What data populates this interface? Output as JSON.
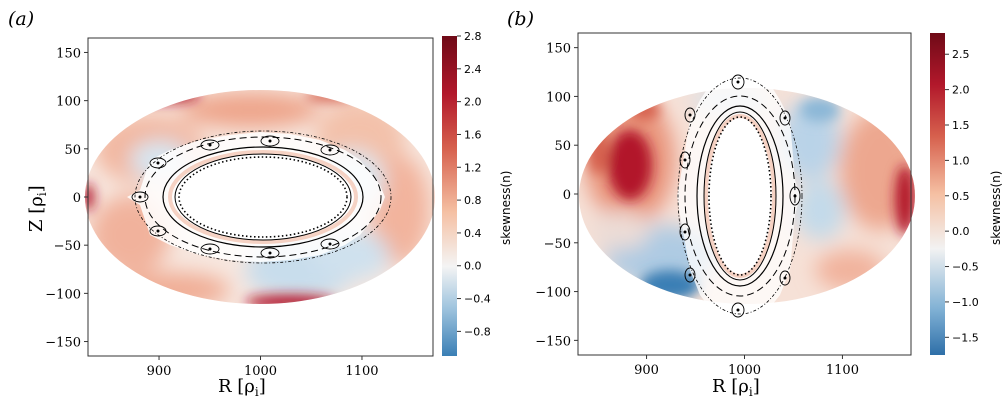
{
  "panels": [
    {
      "label": "(a)",
      "xlabel": "R [ρ",
      "xlabel_sub": "i",
      "xlabel_end": "]",
      "ylabel": "Z [ρ",
      "ylabel_sub": "i",
      "ylabel_end": "]",
      "colorbar_label": "skewness(n)"
    },
    {
      "label": "(b)",
      "xlabel": "R [ρ",
      "xlabel_sub": "i",
      "xlabel_end": "]",
      "ylabel": "",
      "colorbar_label": "skewness(n)"
    }
  ],
  "chart_data": [
    {
      "type": "heatmap",
      "title": "",
      "x_ticks": [
        900,
        1000,
        1100
      ],
      "y_ticks": [
        150,
        100,
        50,
        0,
        -50,
        -100,
        -150
      ],
      "xlim": [
        830,
        1170
      ],
      "ylim": [
        -165,
        165
      ],
      "colorbar": {
        "min": -1.1,
        "max": 2.8,
        "ticks": [
          2.8,
          2.4,
          2.0,
          1.6,
          1.2,
          0.8,
          0.4,
          0.0,
          -0.4,
          -0.8
        ],
        "tick_labels": [
          "2.8",
          "2.4",
          "2.0",
          "1.6",
          "1.2",
          "0.8",
          "0.4",
          "0.0",
          "−0.4",
          "−0.8"
        ]
      },
      "colormap": [
        "#3a7fb5",
        "#ffffff",
        "#6f0a17"
      ],
      "domain_ellipse": {
        "cx": 1000,
        "cy": 0,
        "rx": 172,
        "ry": 108
      },
      "inner_hole": {
        "cx": 1000,
        "cy": 0,
        "rx": 65,
        "ry": 38
      }
    },
    {
      "type": "heatmap",
      "title": "",
      "x_ticks": [
        900,
        1000,
        1100
      ],
      "y_ticks": [
        150,
        100,
        50,
        0,
        -50,
        -100,
        -150
      ],
      "xlim": [
        830,
        1170
      ],
      "ylim": [
        -165,
        165
      ],
      "colorbar": {
        "min": -1.75,
        "max": 2.8,
        "ticks": [
          2.5,
          2.0,
          1.5,
          1.0,
          0.5,
          0.0,
          -0.5,
          -1.0,
          -1.5
        ],
        "tick_labels": [
          "2.5",
          "2.0",
          "1.5",
          "1.0",
          "0.5",
          "0.0",
          "−0.5",
          "−1.0",
          "−1.5"
        ]
      },
      "colormap": [
        "#3a7fb5",
        "#ffffff",
        "#6f0a17"
      ],
      "domain_ellipse": {
        "cx": 1000,
        "cy": 0,
        "rx": 170,
        "ry": 117
      },
      "inner_hole": {
        "cx": 988,
        "cy": 0,
        "rx": 32,
        "ry": 82
      }
    }
  ]
}
